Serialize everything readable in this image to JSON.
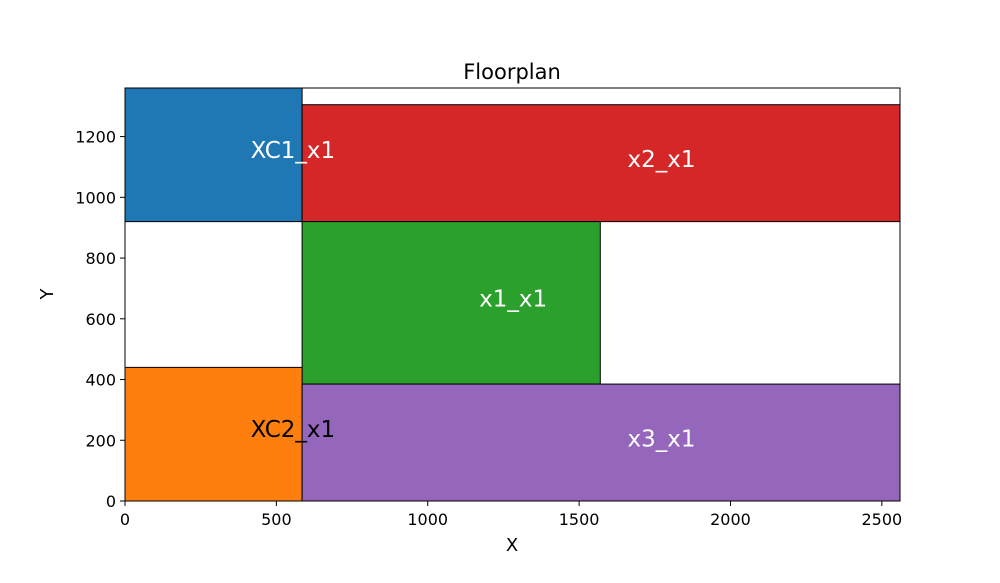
{
  "chart_data": {
    "type": "floorplan",
    "title": "Floorplan",
    "xlabel": "X",
    "ylabel": "Y",
    "xlim": [
      0,
      2560
    ],
    "ylim": [
      0,
      1360
    ],
    "xticks": [
      0,
      500,
      1000,
      1500,
      2000,
      2500
    ],
    "yticks": [
      0,
      200,
      400,
      600,
      800,
      1000,
      1200
    ],
    "grid": false,
    "rects": [
      {
        "name": "XC1_x1",
        "x0": 0,
        "y0": 920,
        "x1": 585,
        "y1": 1360,
        "color": "#1f77b4",
        "label_color": "#ffffff",
        "label_x": 415,
        "label_y": 1130
      },
      {
        "name": "x2_x1",
        "x0": 585,
        "y0": 920,
        "x1": 2560,
        "y1": 1305,
        "color": "#d62728",
        "label_color": "#ffffff",
        "label_x": 1660,
        "label_y": 1100
      },
      {
        "name": "x1_x1",
        "x0": 585,
        "y0": 385,
        "x1": 1570,
        "y1": 920,
        "color": "#2ca02c",
        "label_color": "#ffffff",
        "label_x": 1170,
        "label_y": 640
      },
      {
        "name": "XC2_x1",
        "x0": 0,
        "y0": 0,
        "x1": 585,
        "y1": 440,
        "color": "#ff7f0e",
        "label_color": "#000000",
        "label_x": 415,
        "label_y": 210
      },
      {
        "name": "x3_x1",
        "x0": 585,
        "y0": 0,
        "x1": 2560,
        "y1": 385,
        "color": "#9467bd",
        "label_color": "#ffffff",
        "label_x": 1660,
        "label_y": 180
      }
    ]
  }
}
